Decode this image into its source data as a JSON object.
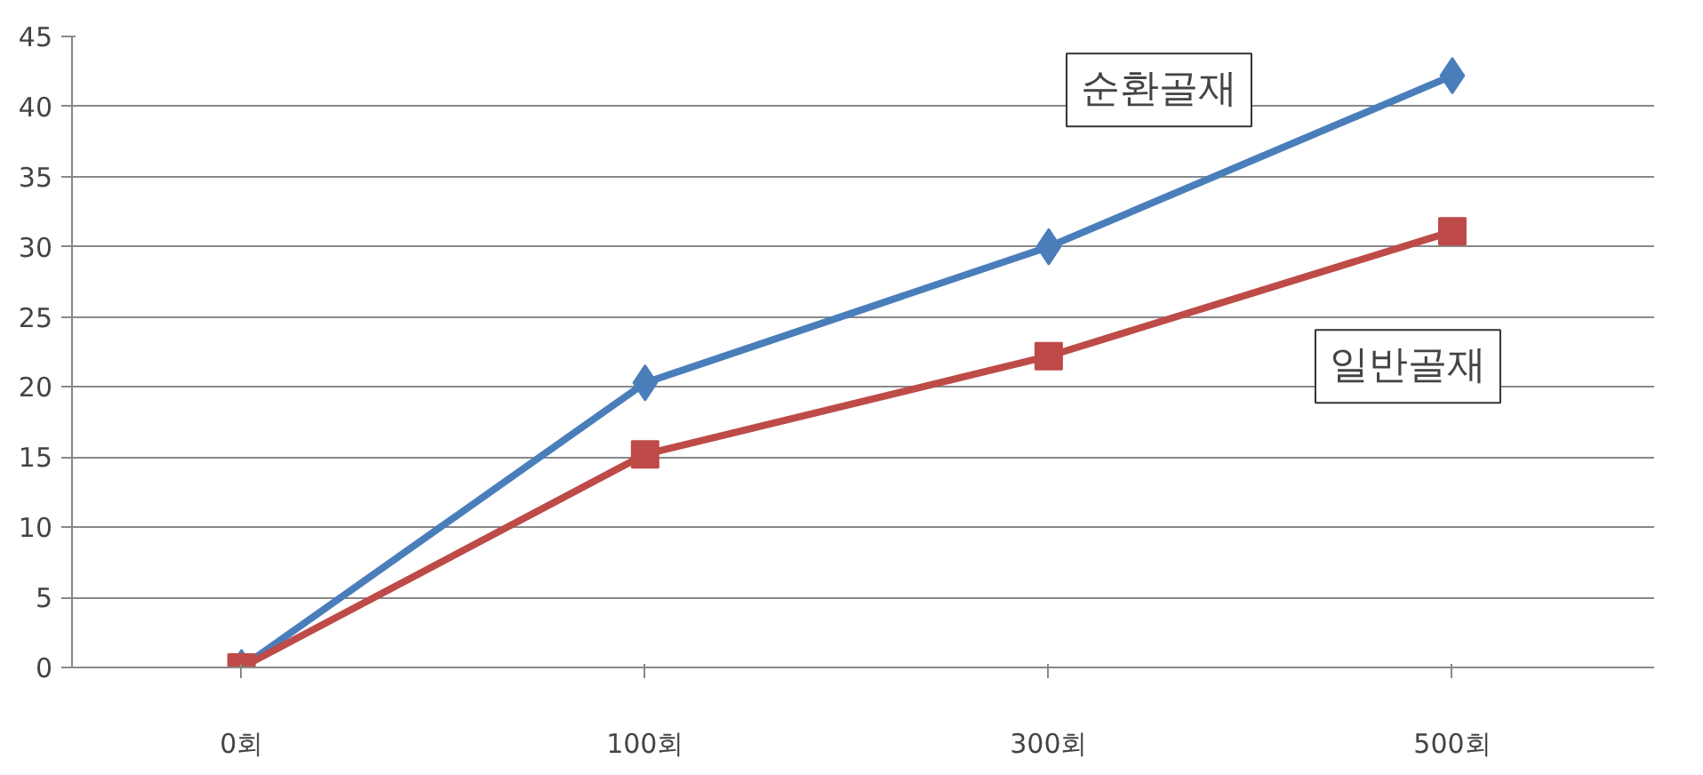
{
  "chart_data": {
    "type": "line",
    "categories": [
      "0회",
      "100회",
      "300회",
      "500회"
    ],
    "series": [
      {
        "name": "순환골재",
        "color": "#4a7ebb",
        "marker": "diamond",
        "values": [
          0,
          20.3,
          30,
          42.2
        ]
      },
      {
        "name": "일반골재",
        "color": "#be4b48",
        "marker": "square",
        "values": [
          0,
          15.2,
          22.2,
          31.1
        ]
      }
    ],
    "ylim": [
      0,
      45
    ],
    "yticks": [
      0,
      5,
      10,
      15,
      20,
      25,
      30,
      35,
      40,
      45
    ],
    "grid": "y"
  }
}
